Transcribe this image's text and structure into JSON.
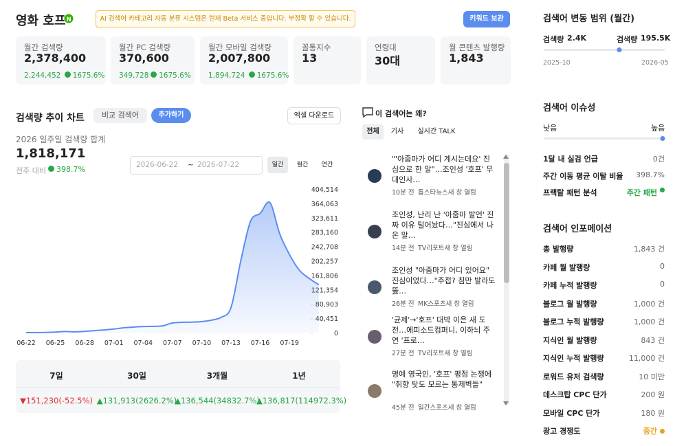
{
  "header": {
    "title": "영화 호프",
    "badge": "N",
    "notice": "AI 검색어 카테고리 자동 분류 시스템은 현재 Beta 서비스 중입니다. 부정확 할 수 있습니다.",
    "button": "키워드 보관"
  },
  "stats": [
    {
      "label": "월간 검색량",
      "value": "2,378,400",
      "prev": "2,244,452",
      "change": "1675.6%"
    },
    {
      "label": "월간 PC 검색량",
      "value": "370,600",
      "prev": "349,728",
      "change": "1675.6%"
    },
    {
      "label": "월간 모바일 검색량",
      "value": "2,007,800",
      "prev": "1,894,724",
      "change": "1675.6%"
    },
    {
      "label": "꼴통지수",
      "value": "13"
    },
    {
      "label": "연령대",
      "value": "30대"
    },
    {
      "label": "월 콘텐츠 발행량",
      "value": "1,843"
    }
  ],
  "trend": {
    "title": "검색량 추이 차트",
    "compare": "비교 검색어",
    "add": "추가하기",
    "download": "엑셀 다운로드",
    "subtitle": "2026 일주일 검색량 합계",
    "total": "1,818,171",
    "vs": "전주 대비",
    "change": "398.7%",
    "date_from": "2026-06-22",
    "sep": "~",
    "date_to": "2026-07-22",
    "periods": [
      "일간",
      "월간",
      "연간"
    ]
  },
  "chart_data": {
    "type": "area",
    "color": "#5b8def",
    "categories": [
      "06-22",
      null,
      null,
      "06-25",
      null,
      null,
      "06-28",
      null,
      null,
      "07-01",
      null,
      null,
      "07-04",
      null,
      null,
      "07-07",
      null,
      null,
      "07-10",
      null,
      null,
      "07-13",
      null,
      null,
      "07-16",
      null,
      null,
      "07-19",
      null,
      null,
      null
    ],
    "values": [
      2000,
      2000,
      2500,
      3500,
      5000,
      4000,
      5500,
      7500,
      9500,
      12000,
      15500,
      17500,
      19000,
      19500,
      21000,
      29000,
      31000,
      31500,
      33000,
      37000,
      45000,
      72000,
      203000,
      315000,
      338000,
      368000,
      280000,
      222000,
      178000,
      155000,
      137000
    ],
    "ylim": [
      0,
      404514
    ],
    "yticks": [
      0,
      {
        "value": 40451,
        "label": "40,451"
      },
      {
        "value": 80903,
        "label": "80,903"
      },
      {
        "value": 121354,
        "label": "121,354"
      },
      {
        "value": 161806,
        "label": "161,806"
      },
      {
        "value": 202257,
        "label": "202,257"
      },
      {
        "value": 242708,
        "label": "242,708"
      },
      {
        "value": 283160,
        "label": "283,160"
      },
      {
        "value": 323611,
        "label": "323,611"
      },
      {
        "value": 364063,
        "label": "364,063"
      },
      {
        "value": 404514,
        "label": "404,514"
      }
    ]
  },
  "summary": {
    "headers": [
      "7일",
      "30일",
      "3개월",
      "1년"
    ],
    "values": [
      "▼151,230(-52.5%)",
      "▲131,913(2626.2%)",
      "▲136,544(34832.7%)",
      "▲136,817(114972.3%)"
    ]
  },
  "news": {
    "title": "이 검색어는 왜?",
    "tabs": [
      "전체",
      "기사",
      "실시간 TALK"
    ],
    "items": [
      {
        "title": "\"'아줌마가 어디 계시는데요' 진심으로 한 말\"…조인성 '호프' 무대인사…",
        "time": "10분 전",
        "source": "톱스타뉴스새 창 열림"
      },
      {
        "title": "조인성, 난리 난 '아줌마 발언' 진짜 이유 털어놨다…\"진심에서 나온 말…",
        "time": "14분 전",
        "source": "TV리포트새 창 열림"
      },
      {
        "title": "조인성 \"아줌마가 어디 있어요\" 진심이었다…\"주접? 침만 발라도 뚫…",
        "time": "26분 전",
        "source": "MK스포츠새 창 열림"
      },
      {
        "title": "'균제'→'호프' 대박 이은 새 도전…에피소드컴퍼니, 이하늬 주연 '프로…",
        "time": "27분 전",
        "source": "TV리포트새 창 열림"
      },
      {
        "title": "명예 영국인, '호프' 평점 논쟁에 \"취향 탓도 모르는 통제벽들\"",
        "time": "45분 전",
        "source": "일간스포츠새 창 열림"
      }
    ]
  },
  "range": {
    "title": "검색어 변동 범위 (월간)",
    "min_label": "검색량",
    "min": "2.4K",
    "max_label": "검색량",
    "max": "195.5K",
    "from": "2025-10",
    "to": "2026-05"
  },
  "issue": {
    "title": "검색어 이슈성",
    "low": "낮음",
    "high": "높음",
    "rows": [
      [
        "1달 내 실검 언급",
        "0건"
      ],
      [
        "주간 이동 평균 이탈 비율",
        "398.7%"
      ],
      [
        "프랙탈 패턴 분석",
        "주간 패턴"
      ]
    ]
  },
  "info": {
    "title": "검색어 인포메이션",
    "rows": [
      [
        "총 발행량",
        "1,843 건"
      ],
      [
        "카페 월 발행량",
        "0"
      ],
      [
        "카페 누적 발행량",
        "0"
      ],
      [
        "블로그 월 발행량",
        "1,000 건"
      ],
      [
        "블로그 누적 발행량",
        "1,000 건"
      ],
      [
        "지식인 월 발행량",
        "843 건"
      ],
      [
        "지식인 누적 발행량",
        "11,000 건"
      ],
      [
        "로워드 유저 검색량",
        "10 미만"
      ],
      [
        "데스크탑 CPC 단가",
        "200 원"
      ],
      [
        "모바일 CPC 단가",
        "180 원"
      ],
      [
        "광고 경쟁도",
        "중간"
      ]
    ]
  }
}
